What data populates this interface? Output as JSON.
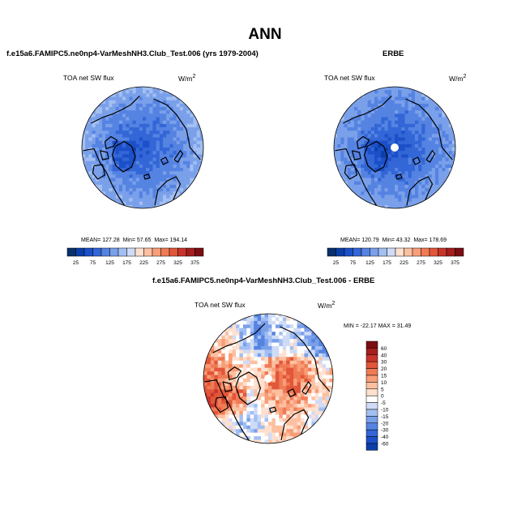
{
  "figure": {
    "title": "ANN",
    "colors": {
      "background": "#ffffff",
      "coast": "#000000",
      "border": "#000000"
    }
  },
  "chart_data": [
    {
      "type": "heatmap",
      "projection": "north polar stereographic",
      "title": "f.e15a6.FAMIPC5.ne0np4-VarMeshNH3.Club_Test.006 (yrs 1979-2004)",
      "variable": "TOA net SW flux",
      "units": "W/m",
      "units_sup": "2",
      "stats": {
        "mean_label": "MEAN=",
        "mean": "127.28",
        "min_label": "Min=",
        "min": "57.65",
        "max_label": "Max=",
        "max": "194.14"
      },
      "field": {
        "pole": 70,
        "mid": 110,
        "edge": 150
      },
      "colorbar": {
        "orientation": "horizontal",
        "labels": [
          "25",
          "75",
          "125",
          "175",
          "225",
          "275",
          "325",
          "375"
        ],
        "colors": [
          "#08306b",
          "#0b3ea8",
          "#1c50c8",
          "#3366d6",
          "#5583e2",
          "#7aa0ea",
          "#a3bff2",
          "#cfdbf7",
          "#ffe0cf",
          "#fcc0a0",
          "#f99d78",
          "#ef7b55",
          "#e2563a",
          "#c8342a",
          "#a51d1d",
          "#7a0d12"
        ]
      }
    },
    {
      "type": "heatmap",
      "projection": "north polar stereographic",
      "title": "ERBE",
      "variable": "TOA net SW flux",
      "units": "W/m",
      "units_sup": "2",
      "stats": {
        "mean_label": "MEAN=",
        "mean": "120.79",
        "min_label": "Min=",
        "min": "43.32",
        "max_label": "Max=",
        "max": "178.69"
      },
      "field": {
        "pole": 60,
        "mid": 105,
        "edge": 140
      },
      "missing_pole": true,
      "colorbar": {
        "orientation": "horizontal",
        "labels": [
          "25",
          "75",
          "125",
          "175",
          "225",
          "275",
          "325",
          "375"
        ],
        "colors": [
          "#08306b",
          "#0b3ea8",
          "#1c50c8",
          "#3366d6",
          "#5583e2",
          "#7aa0ea",
          "#a3bff2",
          "#cfdbf7",
          "#ffe0cf",
          "#fcc0a0",
          "#f99d78",
          "#ef7b55",
          "#e2563a",
          "#c8342a",
          "#a51d1d",
          "#7a0d12"
        ]
      }
    },
    {
      "type": "heatmap",
      "projection": "north polar stereographic",
      "title": "f.e15a6.FAMIPC5.ne0np4-VarMeshNH3.Club_Test.006 - ERBE",
      "variable": "TOA net SW flux",
      "units": "W/m",
      "units_sup": "2",
      "stats_text": "MIN = -22.17  MAX =  31.49",
      "stats": {
        "min": -22.17,
        "max": 31.49
      },
      "missing_pole": true,
      "colorbar": {
        "orientation": "vertical",
        "levels": [
          60,
          40,
          30,
          20,
          15,
          10,
          5,
          0,
          -5,
          -10,
          -15,
          -20,
          -30,
          -40,
          -60
        ],
        "colors": [
          "#7a0d12",
          "#a51d1d",
          "#c8342a",
          "#e2563a",
          "#ef7b55",
          "#f99d78",
          "#fcc0a0",
          "#ffe0cf",
          "#ffffff",
          "#cfdbf7",
          "#a3bff2",
          "#7aa0ea",
          "#5583e2",
          "#3366d6",
          "#1c50c8",
          "#0b3ea8"
        ]
      }
    }
  ]
}
